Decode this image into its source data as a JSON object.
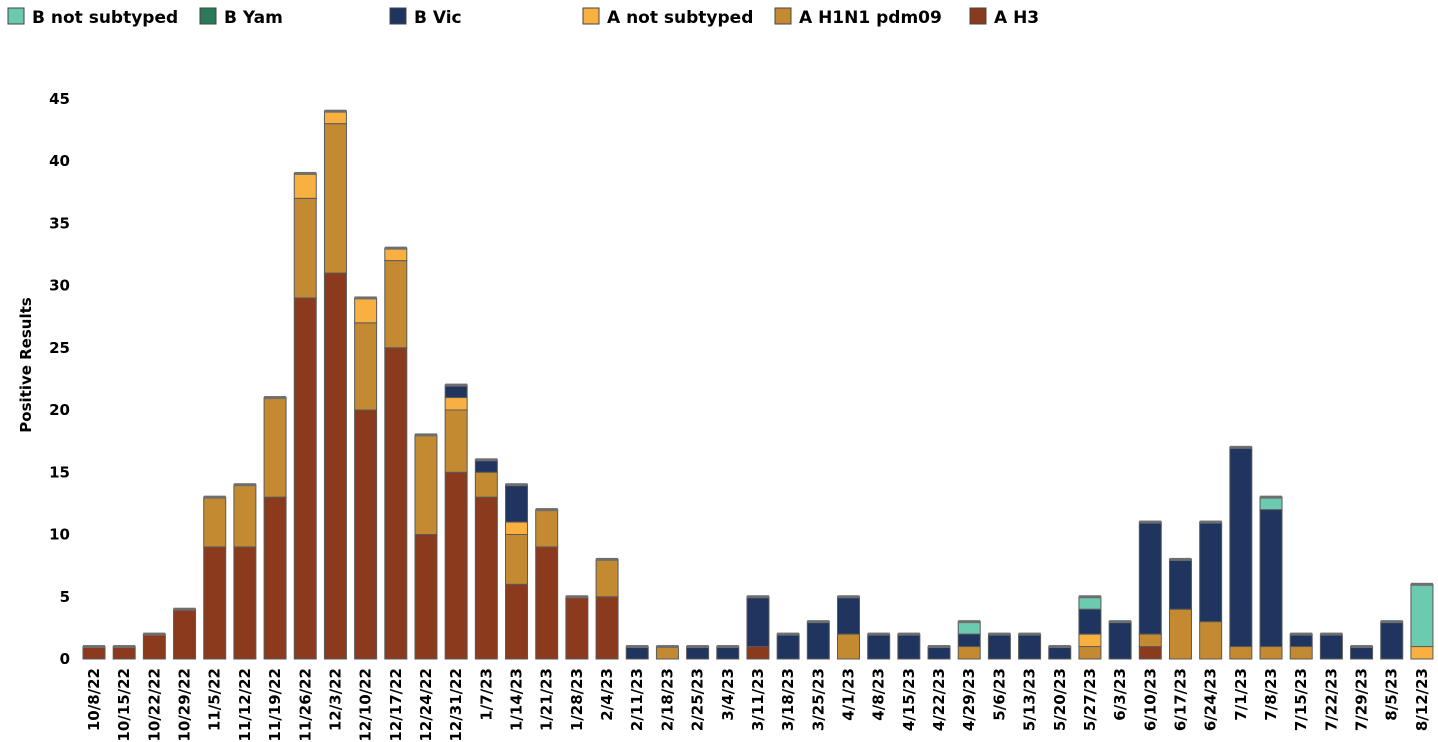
{
  "chart_data": {
    "type": "bar",
    "stacked": true,
    "title": "",
    "xlabel": "",
    "ylabel": "Positive Results",
    "ylim": [
      0,
      45
    ],
    "yticks": [
      0,
      5,
      10,
      15,
      20,
      25,
      30,
      35,
      40,
      45
    ],
    "grid": false,
    "legend_position": "top",
    "categories": [
      "10/8/22",
      "10/15/22",
      "10/22/22",
      "10/29/22",
      "11/5/22",
      "11/12/22",
      "11/19/22",
      "11/26/22",
      "12/3/22",
      "12/10/22",
      "12/17/22",
      "12/24/22",
      "12/31/22",
      "1/7/23",
      "1/14/23",
      "1/21/23",
      "1/28/23",
      "2/4/23",
      "2/11/23",
      "2/18/23",
      "2/25/23",
      "3/4/23",
      "3/11/23",
      "3/18/23",
      "3/25/23",
      "4/1/23",
      "4/8/23",
      "4/15/23",
      "4/22/23",
      "4/29/23",
      "5/6/23",
      "5/13/23",
      "5/20/23",
      "5/27/23",
      "6/3/23",
      "6/10/23",
      "6/17/23",
      "6/24/23",
      "7/1/23",
      "7/8/23",
      "7/15/23",
      "7/22/23",
      "7/29/23",
      "8/5/23",
      "8/12/23"
    ],
    "series": [
      {
        "name": "A H3",
        "color": "#8b3a1e",
        "values": [
          1,
          1,
          2,
          4,
          9,
          9,
          13,
          29,
          31,
          20,
          25,
          10,
          15,
          13,
          6,
          9,
          5,
          5,
          0,
          0,
          0,
          0,
          1,
          0,
          0,
          0,
          0,
          0,
          0,
          0,
          0,
          0,
          0,
          0,
          0,
          1,
          0,
          0,
          0,
          0,
          0,
          0,
          0,
          0,
          0
        ]
      },
      {
        "name": "A H1N1 pdm09",
        "color": "#c48a32",
        "values": [
          0,
          0,
          0,
          0,
          4,
          5,
          8,
          8,
          12,
          7,
          7,
          8,
          5,
          2,
          4,
          3,
          0,
          3,
          0,
          1,
          0,
          0,
          0,
          0,
          0,
          2,
          0,
          0,
          0,
          1,
          0,
          0,
          0,
          1,
          0,
          1,
          4,
          3,
          1,
          1,
          1,
          0,
          0,
          0,
          0
        ]
      },
      {
        "name": "A not subtyped",
        "color": "#f8b040",
        "values": [
          0,
          0,
          0,
          0,
          0,
          0,
          0,
          2,
          1,
          2,
          1,
          0,
          1,
          0,
          1,
          0,
          0,
          0,
          0,
          0,
          0,
          0,
          0,
          0,
          0,
          0,
          0,
          0,
          0,
          0,
          0,
          0,
          0,
          1,
          0,
          0,
          0,
          0,
          0,
          0,
          0,
          0,
          0,
          0,
          1
        ]
      },
      {
        "name": "B Vic",
        "color": "#1f3560",
        "values": [
          0,
          0,
          0,
          0,
          0,
          0,
          0,
          0,
          0,
          0,
          0,
          0,
          1,
          1,
          3,
          0,
          0,
          0,
          1,
          0,
          1,
          1,
          4,
          2,
          3,
          3,
          2,
          2,
          1,
          1,
          2,
          2,
          1,
          2,
          3,
          9,
          4,
          8,
          16,
          11,
          1,
          2,
          1,
          3,
          0
        ]
      },
      {
        "name": "B Yam",
        "color": "#2a7a5a",
        "values": [
          0,
          0,
          0,
          0,
          0,
          0,
          0,
          0,
          0,
          0,
          0,
          0,
          0,
          0,
          0,
          0,
          0,
          0,
          0,
          0,
          0,
          0,
          0,
          0,
          0,
          0,
          0,
          0,
          0,
          0,
          0,
          0,
          0,
          0,
          0,
          0,
          0,
          0,
          0,
          0,
          0,
          0,
          0,
          0,
          0
        ]
      },
      {
        "name": "B not subtyped",
        "color": "#6ccab0",
        "values": [
          0,
          0,
          0,
          0,
          0,
          0,
          0,
          0,
          0,
          0,
          0,
          0,
          0,
          0,
          0,
          0,
          0,
          0,
          0,
          0,
          0,
          0,
          0,
          0,
          0,
          0,
          0,
          0,
          0,
          1,
          0,
          0,
          0,
          1,
          0,
          0,
          0,
          0,
          0,
          1,
          0,
          0,
          0,
          0,
          5
        ]
      }
    ],
    "legend": [
      {
        "label": "B not subtyped",
        "color": "#6ccab0"
      },
      {
        "label": "B Yam",
        "color": "#2a7a5a"
      },
      {
        "label": "B Vic",
        "color": "#1f3560"
      },
      {
        "label": "A not subtyped",
        "color": "#f8b040"
      },
      {
        "label": "A H1N1 pdm09",
        "color": "#c48a32"
      },
      {
        "label": "A H3",
        "color": "#8b3a1e"
      }
    ]
  }
}
